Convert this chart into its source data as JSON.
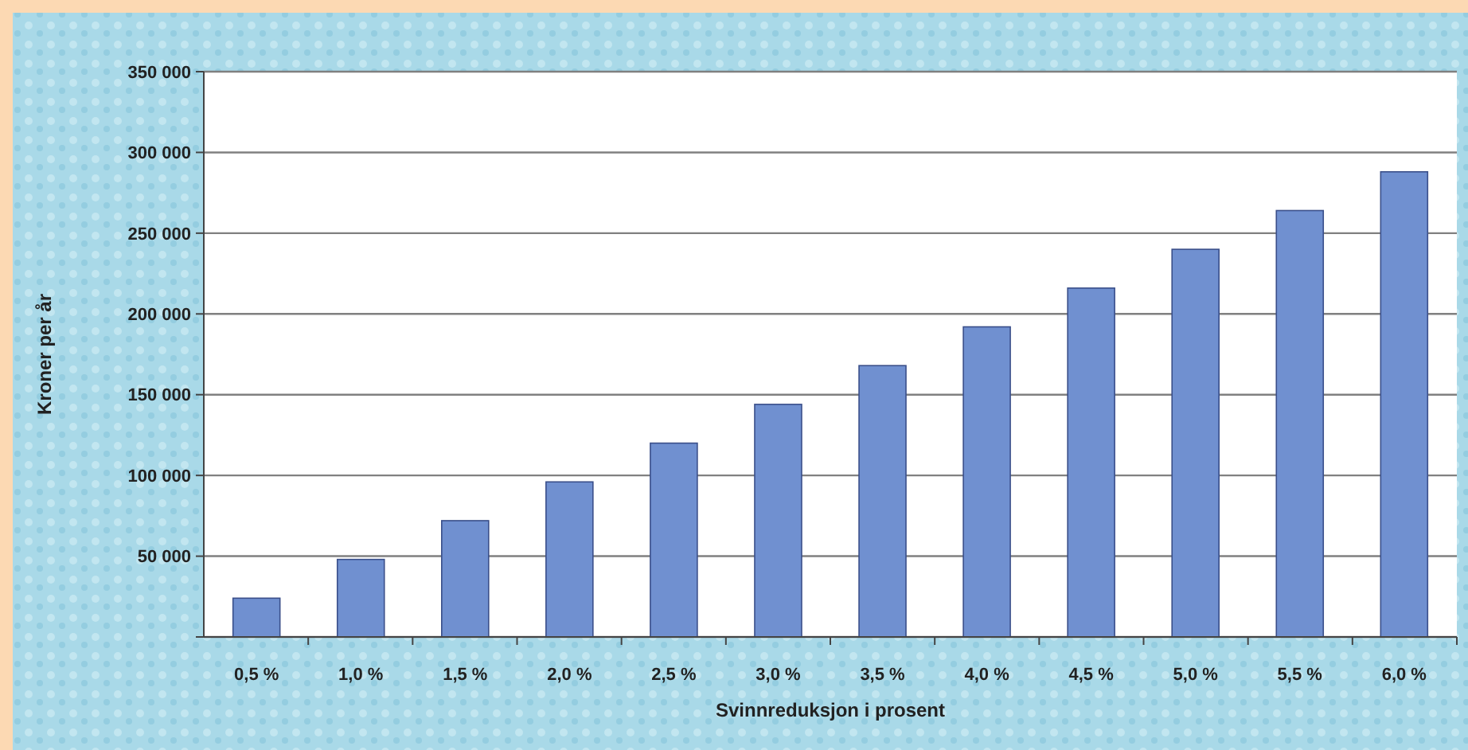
{
  "chart_data": {
    "type": "bar",
    "xlabel": "Svinnreduksjon i prosent",
    "ylabel": "Kroner per år",
    "categories": [
      "0,5 %",
      "1,0 %",
      "1,5 %",
      "2,0 %",
      "2,5 %",
      "3,0 %",
      "3,5 %",
      "4,0 %",
      "4,5 %",
      "5,0 %",
      "5,5 %",
      "6,0 %"
    ],
    "values": [
      24000,
      48000,
      72000,
      96000,
      120000,
      144000,
      168000,
      192000,
      216000,
      240000,
      264000,
      288000
    ],
    "color": "#7090d0",
    "ylim": [
      0,
      350000
    ],
    "yticks": [
      {
        "value": 0,
        "label": null
      },
      {
        "value": 50000,
        "label": "50 000"
      },
      {
        "value": 100000,
        "label": "100 000"
      },
      {
        "value": 150000,
        "label": "150 000"
      },
      {
        "value": 200000,
        "label": "200 000"
      },
      {
        "value": 250000,
        "label": "250 000"
      },
      {
        "value": 300000,
        "label": "300 000"
      },
      {
        "value": 350000,
        "label": "350 000"
      }
    ],
    "grid": "y"
  }
}
